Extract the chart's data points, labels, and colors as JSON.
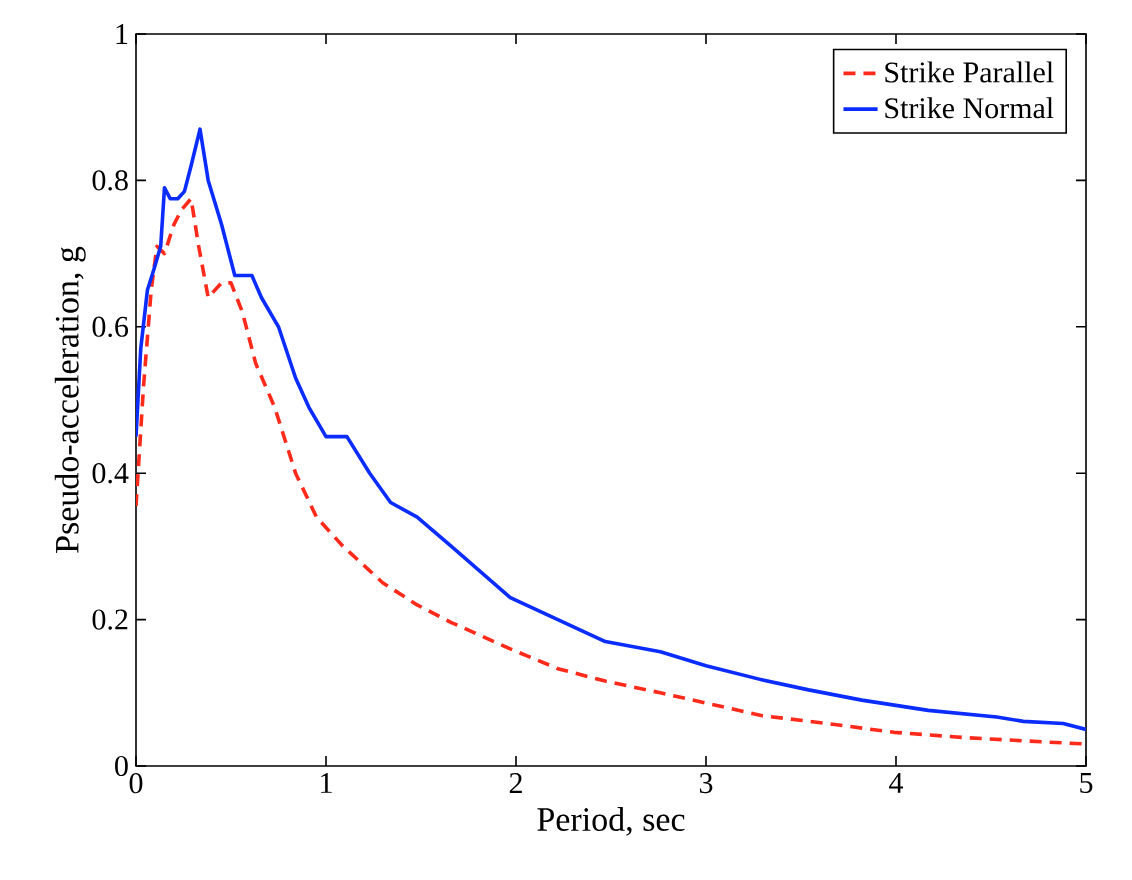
{
  "chart_data": {
    "type": "line",
    "xlabel": "Period, sec",
    "ylabel": "Pseudo-acceleration, g",
    "xlim": [
      0,
      5
    ],
    "ylim": [
      0,
      1
    ],
    "xticks": [
      0,
      1,
      2,
      3,
      4,
      5
    ],
    "yticks": [
      0,
      0.2,
      0.4,
      0.6,
      0.8,
      1
    ],
    "legend": "top right",
    "grid": false,
    "series": [
      {
        "name": "Strike Parallel",
        "color": "#ff2a1a",
        "line_style": "dashed",
        "x": [
          0,
          0.04,
          0.08,
          0.11,
          0.15,
          0.2,
          0.24,
          0.29,
          0.33,
          0.38,
          0.45,
          0.5,
          0.56,
          0.63,
          0.73,
          0.84,
          0.95,
          1.09,
          1.3,
          1.48,
          1.66,
          1.97,
          2.22,
          2.47,
          2.76,
          3.0,
          3.29,
          3.64,
          3.99,
          4.35,
          4.7,
          5.0
        ],
        "values": [
          0.355,
          0.52,
          0.65,
          0.71,
          0.7,
          0.74,
          0.76,
          0.775,
          0.71,
          0.64,
          0.66,
          0.66,
          0.62,
          0.55,
          0.49,
          0.4,
          0.34,
          0.3,
          0.25,
          0.22,
          0.196,
          0.16,
          0.133,
          0.116,
          0.1,
          0.086,
          0.069,
          0.058,
          0.046,
          0.039,
          0.034,
          0.03
        ]
      },
      {
        "name": "Strike Normal",
        "color": "#0a2cff",
        "line_style": "solid",
        "x": [
          0,
          0.025,
          0.06,
          0.096,
          0.13,
          0.15,
          0.18,
          0.22,
          0.255,
          0.29,
          0.337,
          0.38,
          0.45,
          0.52,
          0.59,
          0.61,
          0.66,
          0.75,
          0.84,
          0.91,
          1.0,
          1.11,
          1.23,
          1.34,
          1.48,
          1.66,
          1.97,
          2.22,
          2.47,
          2.76,
          3.0,
          3.29,
          3.54,
          3.82,
          4.17,
          4.53,
          4.67,
          4.88,
          5.0
        ],
        "values": [
          0.45,
          0.57,
          0.65,
          0.68,
          0.71,
          0.79,
          0.775,
          0.775,
          0.785,
          0.82,
          0.87,
          0.8,
          0.74,
          0.67,
          0.67,
          0.67,
          0.64,
          0.6,
          0.53,
          0.49,
          0.45,
          0.45,
          0.4,
          0.36,
          0.34,
          0.3,
          0.23,
          0.2,
          0.17,
          0.156,
          0.137,
          0.118,
          0.104,
          0.09,
          0.076,
          0.067,
          0.061,
          0.058,
          0.05
        ]
      }
    ]
  }
}
